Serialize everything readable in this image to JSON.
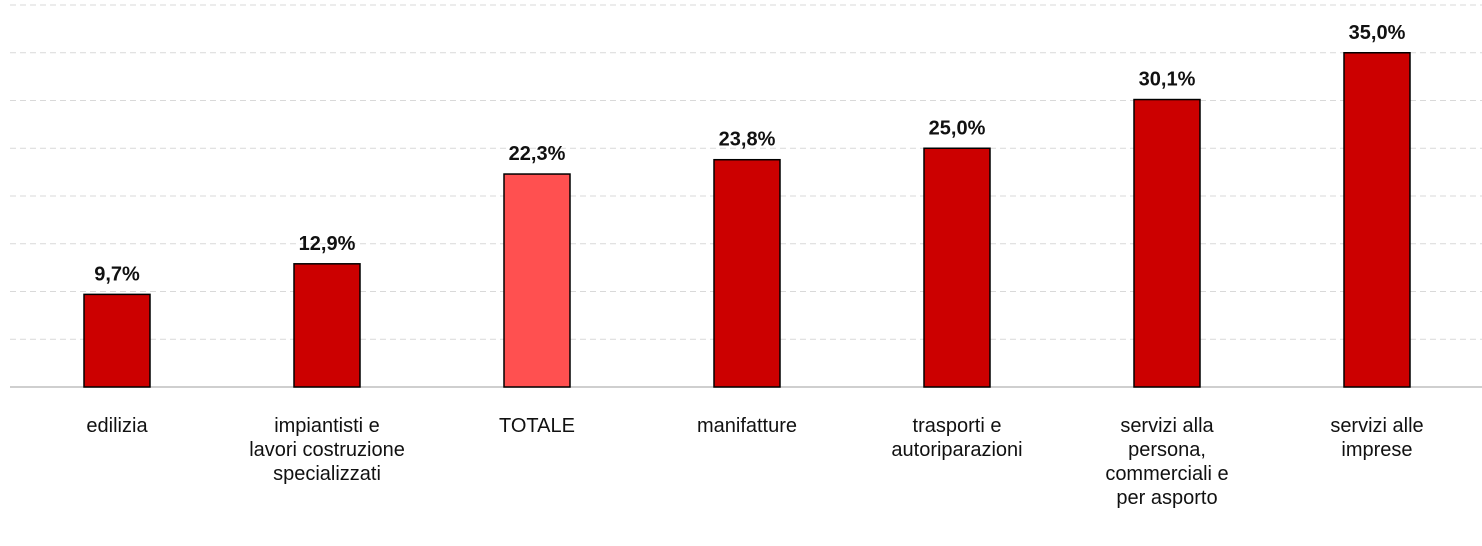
{
  "chart_data": {
    "type": "bar",
    "categories": [
      [
        "edilizia"
      ],
      [
        "impiantisti e",
        "lavori costruzione",
        "specializzati"
      ],
      [
        "TOTALE"
      ],
      [
        "manifatture"
      ],
      [
        "trasporti e",
        "autoriparazioni"
      ],
      [
        "servizi alla",
        "persona,",
        "commerciali e",
        "per asporto"
      ],
      [
        "servizi alle",
        "imprese"
      ]
    ],
    "values": [
      9.7,
      12.9,
      22.3,
      23.8,
      25.0,
      30.1,
      35.0
    ],
    "value_labels": [
      "9,7%",
      "12,9%",
      "22,3%",
      "23,8%",
      "25,0%",
      "30,1%",
      "35,0%"
    ],
    "colors": [
      "#cc0000",
      "#cc0000",
      "#ff5050",
      "#cc0000",
      "#cc0000",
      "#cc0000",
      "#cc0000"
    ],
    "ylim": [
      0,
      40
    ],
    "yticks": [
      0,
      5,
      10,
      15,
      20,
      25,
      30,
      35,
      40
    ],
    "grid": true
  }
}
